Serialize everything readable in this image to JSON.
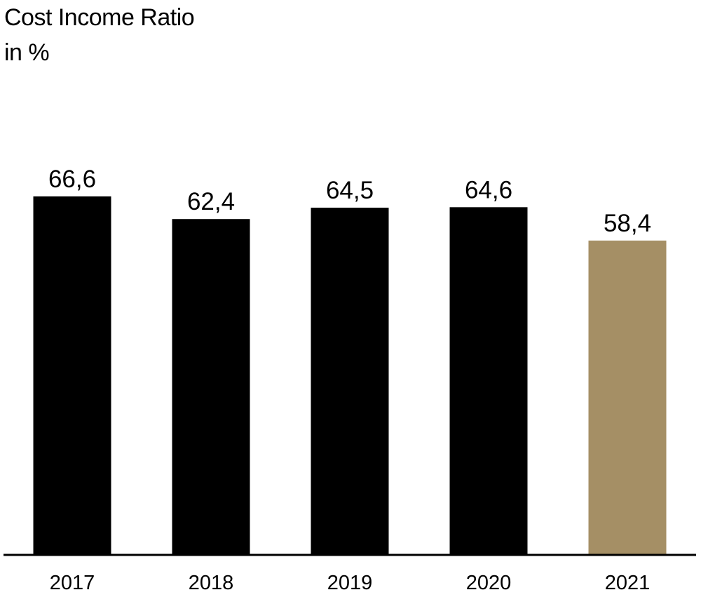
{
  "title": "Cost Income Ratio",
  "subtitle": "in %",
  "colors": {
    "bar": "#000000",
    "highlight": "#a58f65",
    "axis": "#000000"
  },
  "chart_data": {
    "type": "bar",
    "title": "Cost Income Ratio",
    "ylabel": "in %",
    "xlabel": "",
    "categories": [
      "2017",
      "2018",
      "2019",
      "2020",
      "2021"
    ],
    "values": [
      66.6,
      62.4,
      64.5,
      64.6,
      58.4
    ],
    "value_labels": [
      "66,6",
      "62,4",
      "64,5",
      "64,6",
      "58,4"
    ],
    "highlight_index": 4,
    "ylim": [
      0,
      66.6
    ],
    "grid": false,
    "legend": "none"
  }
}
